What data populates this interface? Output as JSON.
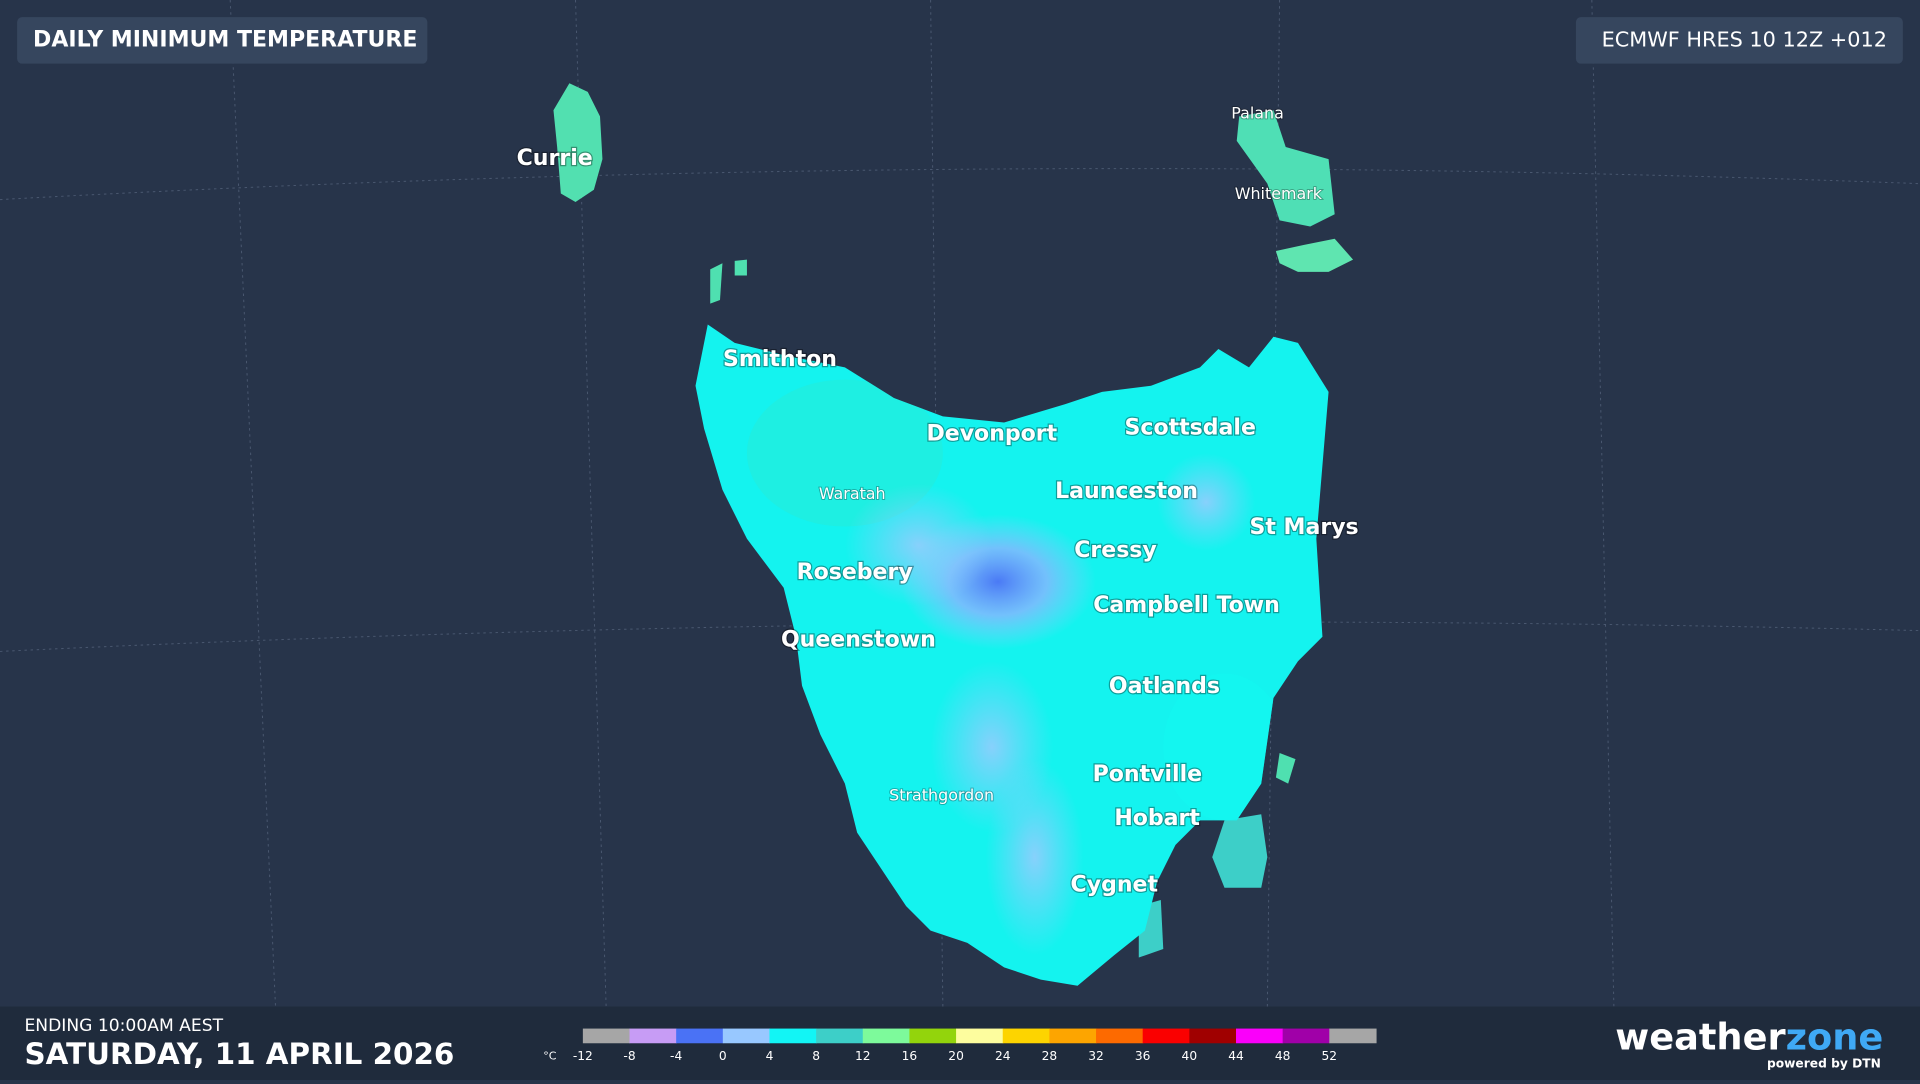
{
  "header": {
    "title": "DAILY MINIMUM TEMPERATURE",
    "model": "ECMWF HRES 10 12Z +012"
  },
  "places": [
    "Currie",
    "Palana",
    "Whitemark",
    "Smithton",
    "Devonport",
    "Scottsdale",
    "Waratah",
    "Launceston",
    "St Marys",
    "Cressy",
    "Rosebery",
    "Campbell Town",
    "Queenstown",
    "Oatlands",
    "Pontville",
    "Strathgordon",
    "Hobart",
    "Cygnet"
  ],
  "footer": {
    "ending": "ENDING 10:00AM AEST",
    "date": "SATURDAY, 11 APRIL 2026"
  },
  "legend": {
    "unit": "°C",
    "ticks": [
      -12,
      -8,
      -4,
      0,
      4,
      8,
      12,
      16,
      20,
      24,
      28,
      32,
      36,
      40,
      44,
      48,
      52
    ],
    "colors": [
      "#a6a6a6",
      "#c79cf5",
      "#4a72f5",
      "#98c8ff",
      "#12f5f5",
      "#3dcfc8",
      "#7dfa9b",
      "#93d40c",
      "#fdfd9e",
      "#fdd400",
      "#fda500",
      "#fd6a00",
      "#fa0000",
      "#a00000",
      "#fa00fa",
      "#a000a8",
      "#a6a6a6"
    ]
  },
  "logo": {
    "word": "weather",
    "accent": "zone",
    "tagline": "powered by DTN"
  }
}
